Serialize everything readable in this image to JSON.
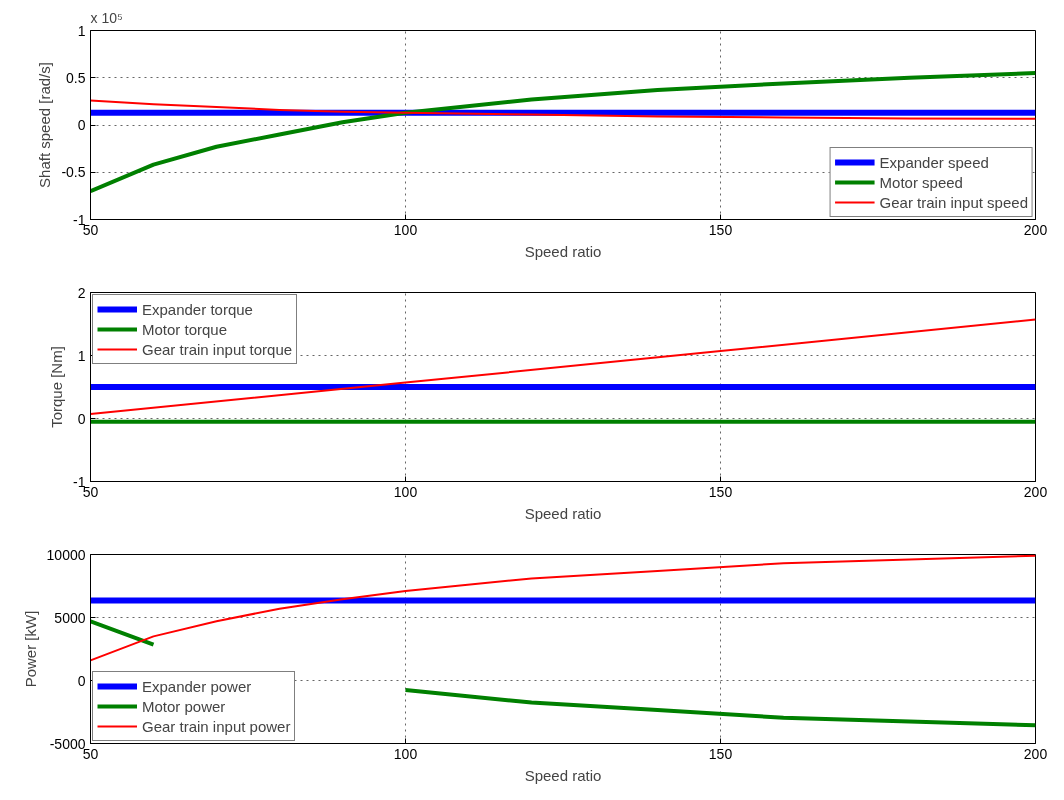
{
  "chart_data": [
    {
      "type": "line",
      "xlabel": "Speed ratio",
      "ylabel": "Shaft speed [rad/s]",
      "annotations": [
        "x 10⁵"
      ],
      "xlim": [
        50,
        200
      ],
      "ylim": [
        -1,
        1
      ],
      "xticks": [
        50,
        100,
        150,
        200
      ],
      "yticks": [
        -1,
        -0.5,
        0,
        0.5,
        1
      ],
      "grid": true,
      "legend": "bottom right",
      "x": [
        50,
        60,
        70,
        80,
        90,
        100,
        120,
        140,
        160,
        180,
        200
      ],
      "series": [
        {
          "name": "Expander speed",
          "color": "#0000ff",
          "values": [
            0.13,
            0.13,
            0.13,
            0.13,
            0.13,
            0.13,
            0.13,
            0.13,
            0.13,
            0.13,
            0.13
          ]
        },
        {
          "name": "Motor speed",
          "color": "#008000",
          "values": [
            -0.7,
            -0.42,
            -0.23,
            -0.1,
            0.03,
            0.13,
            0.27,
            0.37,
            0.44,
            0.5,
            0.55
          ]
        },
        {
          "name": "Gear train input speed",
          "color": "#ff0000",
          "values": [
            0.26,
            0.22,
            0.19,
            0.16,
            0.14,
            0.13,
            0.11,
            0.09,
            0.08,
            0.07,
            0.065
          ]
        }
      ]
    },
    {
      "type": "line",
      "xlabel": "Speed ratio",
      "ylabel": "Torque [Nm]",
      "xlim": [
        50,
        200
      ],
      "ylim": [
        -1,
        2
      ],
      "xticks": [
        50,
        100,
        150,
        200
      ],
      "yticks": [
        -1,
        0,
        1,
        2
      ],
      "grid": true,
      "legend": "top left",
      "x": [
        50,
        100,
        150,
        200
      ],
      "series": [
        {
          "name": "Expander torque",
          "color": "#0000ff",
          "values": [
            0.5,
            0.5,
            0.5,
            0.5
          ]
        },
        {
          "name": "Motor torque",
          "color": "#008000",
          "values": [
            -0.05,
            -0.05,
            -0.05,
            -0.05
          ]
        },
        {
          "name": "Gear train input torque",
          "color": "#ff0000",
          "values": [
            0.07,
            0.57,
            1.07,
            1.57
          ]
        }
      ]
    },
    {
      "type": "line",
      "xlabel": "Speed ratio",
      "ylabel": "Power [kW]",
      "xlim": [
        50,
        200
      ],
      "ylim": [
        -5000,
        10000
      ],
      "xticks": [
        50,
        100,
        150,
        200
      ],
      "yticks": [
        -5000,
        0,
        5000,
        10000
      ],
      "grid": true,
      "legend": "bottom left",
      "x": [
        50,
        60,
        70,
        80,
        90,
        100,
        120,
        140,
        160,
        180,
        200
      ],
      "series": [
        {
          "name": "Expander power",
          "color": "#0000ff",
          "values": [
            6350,
            6350,
            6350,
            6350,
            6350,
            6350,
            6350,
            6350,
            6350,
            6350,
            6350
          ]
        },
        {
          "name": "Motor power",
          "color": "#008000",
          "values": [
            4700,
            2850,
            null,
            null,
            null,
            -750,
            -1750,
            -2350,
            -2950,
            -3250,
            -3550
          ]
        },
        {
          "name": "Gear train input power",
          "color": "#ff0000",
          "values": [
            1600,
            3500,
            4700,
            5700,
            6450,
            7100,
            8100,
            8700,
            9300,
            9600,
            9900
          ]
        }
      ]
    }
  ]
}
